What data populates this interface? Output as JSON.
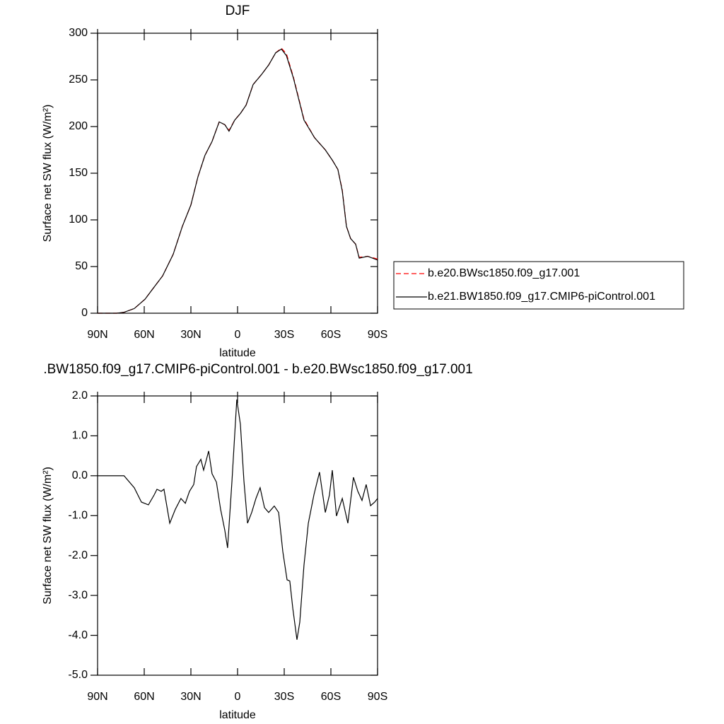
{
  "chart_data": [
    {
      "type": "line",
      "title": "DJF",
      "xlabel": "latitude",
      "ylabel": "Surface net SW flux (W/m²)",
      "x": [
        90,
        77.7,
        73,
        66.4,
        59.5,
        55,
        48.2,
        41.4,
        35.5,
        30,
        25.5,
        21,
        16.4,
        11.8,
        8.2,
        5.5,
        1.8,
        -1.8,
        -5.5,
        -10,
        -15.5,
        -20,
        -24.5,
        -28.2,
        -31.4,
        -35.9,
        -42.7,
        -49.5,
        -56.4,
        -60.9,
        -64.5,
        -67.3,
        -70,
        -72.7,
        -75.9,
        -78.2,
        -83.6,
        -90
      ],
      "series": [
        {
          "name": "b.e20.BWsc1850.f09_g17.001",
          "color": "#ff0000",
          "dash": true,
          "values": [
            0,
            0,
            1,
            5,
            15,
            25,
            40,
            63,
            93,
            116,
            146,
            169,
            184,
            205,
            202,
            196,
            207,
            214,
            223,
            245,
            256,
            266,
            279,
            284,
            278,
            253,
            208,
            188,
            175,
            164,
            154,
            132,
            93,
            80,
            74,
            60,
            61,
            58
          ]
        },
        {
          "name": "b.e21.BW1850.f09_g17.CMIP6-piControl.001",
          "color": "#000000",
          "dash": false,
          "values": [
            0,
            0,
            1,
            5,
            15,
            25,
            40,
            63,
            93,
            116,
            146,
            169,
            184,
            205,
            202,
            195,
            207,
            214,
            223,
            245,
            256,
            266,
            279,
            283,
            276,
            252,
            207,
            188,
            175,
            164,
            154,
            131,
            93,
            80,
            74,
            59,
            61,
            57
          ]
        }
      ],
      "xlim": [
        90,
        -90
      ],
      "xticks": [
        {
          "value": 90,
          "label": "90N"
        },
        {
          "value": 60,
          "label": "60N"
        },
        {
          "value": 30,
          "label": "30N"
        },
        0,
        {
          "value": -30,
          "label": "30S"
        },
        {
          "value": -60,
          "label": "60S"
        },
        {
          "value": -90,
          "label": "90S"
        }
      ],
      "ylim": [
        0,
        300
      ],
      "yticks": [
        0,
        50,
        100,
        150,
        200,
        250,
        300
      ],
      "legend": "right"
    },
    {
      "type": "line",
      "title": ".BW1850.f09_g17.CMIP6-piControl.001 - b.e20.BWsc1850.f09_g17.001",
      "xlabel": "latitude",
      "ylabel": "Surface net SW flux (W/m²)",
      "x": [
        90,
        73,
        66.4,
        61.8,
        57.3,
        53.6,
        51.8,
        49.1,
        47.3,
        43.6,
        40,
        36.4,
        33.6,
        30.9,
        28.2,
        26.4,
        23.6,
        21.8,
        18.6,
        16.4,
        13.6,
        10.9,
        8.2,
        6.4,
        3.6,
        0.5,
        -1.8,
        -4.1,
        -6.4,
        -9.1,
        -11.8,
        -14.5,
        -17.3,
        -20,
        -23.6,
        -26.4,
        -29.1,
        -31.8,
        -33.6,
        -35.5,
        -38.2,
        -40,
        -42.7,
        -45.5,
        -49.1,
        -52.7,
        -56.4,
        -59.1,
        -60.9,
        -63.6,
        -67.3,
        -70.9,
        -74.5,
        -77.3,
        -80,
        -82.7,
        -85.5,
        -88.2,
        -90
      ],
      "series": [
        {
          "color": "#000000",
          "dash": false,
          "values": [
            0,
            0,
            -0.3,
            -0.66,
            -0.73,
            -0.48,
            -0.34,
            -0.39,
            -0.34,
            -1.19,
            -0.84,
            -0.57,
            -0.69,
            -0.39,
            -0.22,
            0.23,
            0.41,
            0.14,
            0.62,
            0.05,
            -0.16,
            -0.84,
            -1.37,
            -1.81,
            -0.13,
            1.91,
            1.29,
            -0.13,
            -1.19,
            -0.92,
            -0.57,
            -0.3,
            -0.8,
            -0.92,
            -0.76,
            -0.92,
            -1.9,
            -2.61,
            -2.64,
            -3.32,
            -4.11,
            -3.67,
            -2.25,
            -1.19,
            -0.48,
            0.09,
            -0.92,
            -0.48,
            0.14,
            -1.01,
            -0.57,
            -1.19,
            -0.04,
            -0.39,
            -0.62,
            -0.22,
            -0.75,
            -0.66,
            -0.57
          ]
        }
      ],
      "xlim": [
        90,
        -90
      ],
      "xticks": [
        {
          "value": 90,
          "label": "90N"
        },
        {
          "value": 60,
          "label": "60N"
        },
        {
          "value": 30,
          "label": "30N"
        },
        0,
        {
          "value": -30,
          "label": "30S"
        },
        {
          "value": -60,
          "label": "60S"
        },
        {
          "value": -90,
          "label": "90S"
        }
      ],
      "ylim": [
        -5,
        2
      ],
      "yticks": [
        {
          "value": 2,
          "label": "2.0"
        },
        {
          "value": 1,
          "label": "1.0"
        },
        {
          "value": 0,
          "label": "0.0"
        },
        {
          "value": -1,
          "label": "-1.0"
        },
        {
          "value": -2,
          "label": "-2.0"
        },
        {
          "value": -3,
          "label": "-3.0"
        },
        {
          "value": -4,
          "label": "-4.0"
        },
        {
          "value": -5,
          "label": "-5.0"
        }
      ]
    }
  ]
}
